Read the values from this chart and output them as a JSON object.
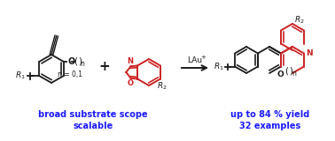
{
  "background_color": "#ffffff",
  "text_blue": "#1a1aff",
  "text_black": "#1a1a1a",
  "line_black": "#1a1a1a",
  "line_red": "#cc2222",
  "fig_width": 3.78,
  "fig_height": 1.6,
  "bottom_text1": "broad substrate scope",
  "bottom_text2": "scalable",
  "bottom_text3": "up to 84 % yield",
  "bottom_text4": "32 examples"
}
